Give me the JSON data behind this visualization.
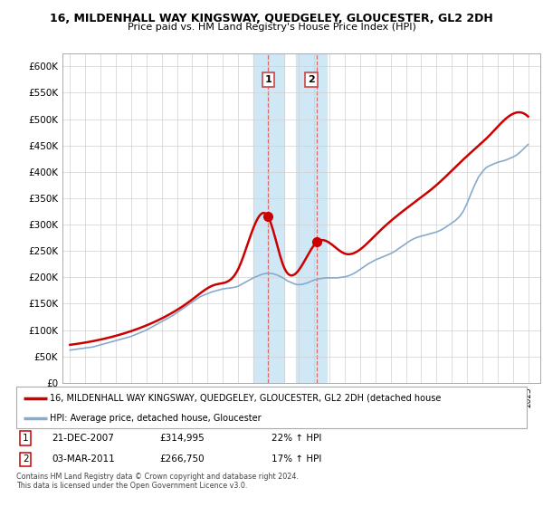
{
  "title": "16, MILDENHALL WAY KINGSWAY, QUEDGELEY, GLOUCESTER, GL2 2DH",
  "subtitle": "Price paid vs. HM Land Registry's House Price Index (HPI)",
  "ylim": [
    0,
    625000
  ],
  "yticks": [
    0,
    50000,
    100000,
    150000,
    200000,
    250000,
    300000,
    350000,
    400000,
    450000,
    500000,
    550000,
    600000
  ],
  "ytick_labels": [
    "£0",
    "£50K",
    "£100K",
    "£150K",
    "£200K",
    "£250K",
    "£300K",
    "£350K",
    "£400K",
    "£450K",
    "£500K",
    "£550K",
    "£600K"
  ],
  "xlim_start": 1994.5,
  "xlim_end": 2025.8,
  "sale1_x": 2007.97,
  "sale1_y": 314995,
  "sale1_label": "1",
  "sale1_date": "21-DEC-2007",
  "sale1_price": "£314,995",
  "sale1_hpi": "22% ↑ HPI",
  "sale2_x": 2011.17,
  "sale2_y": 266750,
  "sale2_label": "2",
  "sale2_date": "03-MAR-2011",
  "sale2_price": "£266,750",
  "sale2_hpi": "17% ↑ HPI",
  "shade1_x1": 2007.0,
  "shade1_x2": 2009.0,
  "shade2_x1": 2009.8,
  "shade2_x2": 2011.8,
  "line1_color": "#cc0000",
  "line2_color": "#88aacc",
  "shade_color": "#d0e8f5",
  "marker_color": "#cc0000",
  "background_color": "#ffffff",
  "legend_line1": "16, MILDENHALL WAY KINGSWAY, QUEDGELEY, GLOUCESTER, GL2 2DH (detached house",
  "legend_line2": "HPI: Average price, detached house, Gloucester",
  "footer": "Contains HM Land Registry data © Crown copyright and database right 2024.\nThis data is licensed under the Open Government Licence v3.0.",
  "hpi_x": [
    1995.0,
    1995.25,
    1995.5,
    1995.75,
    1996.0,
    1996.25,
    1996.5,
    1996.75,
    1997.0,
    1997.25,
    1997.5,
    1997.75,
    1998.0,
    1998.25,
    1998.5,
    1998.75,
    1999.0,
    1999.25,
    1999.5,
    1999.75,
    2000.0,
    2000.25,
    2000.5,
    2000.75,
    2001.0,
    2001.25,
    2001.5,
    2001.75,
    2002.0,
    2002.25,
    2002.5,
    2002.75,
    2003.0,
    2003.25,
    2003.5,
    2003.75,
    2004.0,
    2004.25,
    2004.5,
    2004.75,
    2005.0,
    2005.25,
    2005.5,
    2005.75,
    2006.0,
    2006.25,
    2006.5,
    2006.75,
    2007.0,
    2007.25,
    2007.5,
    2007.75,
    2008.0,
    2008.25,
    2008.5,
    2008.75,
    2009.0,
    2009.25,
    2009.5,
    2009.75,
    2010.0,
    2010.25,
    2010.5,
    2010.75,
    2011.0,
    2011.25,
    2011.5,
    2011.75,
    2012.0,
    2012.25,
    2012.5,
    2012.75,
    2013.0,
    2013.25,
    2013.5,
    2013.75,
    2014.0,
    2014.25,
    2014.5,
    2014.75,
    2015.0,
    2015.25,
    2015.5,
    2015.75,
    2016.0,
    2016.25,
    2016.5,
    2016.75,
    2017.0,
    2017.25,
    2017.5,
    2017.75,
    2018.0,
    2018.25,
    2018.5,
    2018.75,
    2019.0,
    2019.25,
    2019.5,
    2019.75,
    2020.0,
    2020.25,
    2020.5,
    2020.75,
    2021.0,
    2021.25,
    2021.5,
    2021.75,
    2022.0,
    2022.25,
    2022.5,
    2022.75,
    2023.0,
    2023.25,
    2023.5,
    2023.75,
    2024.0,
    2024.25,
    2024.5,
    2024.75,
    2025.0
  ],
  "hpi_y": [
    62000,
    63000,
    64000,
    65000,
    66000,
    67000,
    68000,
    70000,
    72000,
    74000,
    76000,
    78000,
    80000,
    82000,
    84000,
    86000,
    88000,
    91000,
    94000,
    97000,
    100000,
    104000,
    108000,
    112000,
    116000,
    120000,
    124000,
    128000,
    133000,
    138000,
    143000,
    148000,
    153000,
    158000,
    163000,
    166000,
    169000,
    172000,
    174000,
    176000,
    178000,
    179000,
    180000,
    181000,
    183000,
    187000,
    191000,
    195000,
    199000,
    202000,
    205000,
    207000,
    208000,
    207000,
    205000,
    202000,
    198000,
    193000,
    190000,
    187000,
    186000,
    187000,
    189000,
    192000,
    195000,
    197000,
    198000,
    199000,
    199000,
    199000,
    199000,
    200000,
    201000,
    203000,
    206000,
    210000,
    215000,
    220000,
    225000,
    229000,
    233000,
    236000,
    239000,
    242000,
    245000,
    249000,
    254000,
    259000,
    264000,
    269000,
    273000,
    276000,
    278000,
    280000,
    282000,
    284000,
    286000,
    289000,
    293000,
    298000,
    303000,
    308000,
    315000,
    325000,
    340000,
    358000,
    375000,
    390000,
    400000,
    408000,
    412000,
    415000,
    418000,
    420000,
    422000,
    425000,
    428000,
    432000,
    438000,
    445000,
    452000
  ],
  "prop_x": [
    1995.0,
    1997.0,
    1999.0,
    2001.0,
    2003.0,
    2004.5,
    2006.0,
    2007.97,
    2009.0,
    2011.17,
    2013.0,
    2015.0,
    2017.0,
    2019.0,
    2021.0,
    2022.5,
    2024.0,
    2025.0
  ],
  "prop_y": [
    72000,
    82000,
    98000,
    122000,
    158000,
    186000,
    215000,
    314995,
    220000,
    266750,
    245000,
    280000,
    330000,
    375000,
    430000,
    470000,
    510000,
    505000
  ]
}
